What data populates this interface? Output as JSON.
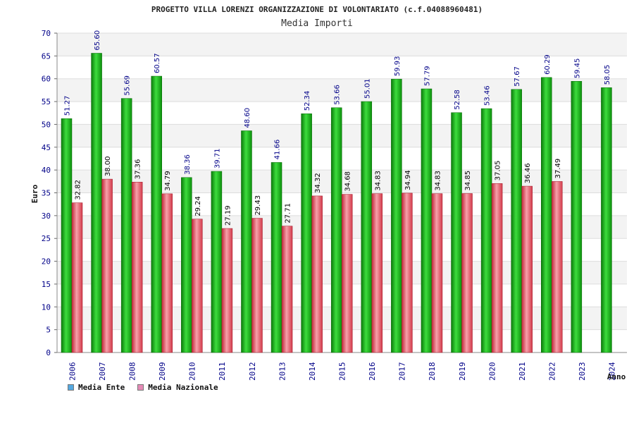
{
  "colors": {
    "ente": "#1fb01f",
    "nazionale": "#e14a5a",
    "legend_ente": "#55a8e0",
    "legend_nazionale": "#e58ab6",
    "axis_label": "#000088",
    "value_ente": "#000088",
    "value_nazionale": "#000000"
  },
  "chart_data": {
    "type": "bar",
    "title": "PROGETTO VILLA LORENZI ORGANIZZAZIONE DI VOLONTARIATO (c.f.04088960481)",
    "subtitle": "Media Importi",
    "xlabel": "Anno",
    "ylabel": "Euro",
    "ylim": [
      0,
      70
    ],
    "yticks": [
      0,
      5,
      10,
      15,
      20,
      25,
      30,
      35,
      40,
      45,
      50,
      55,
      60,
      65,
      70
    ],
    "categories": [
      "2006",
      "2007",
      "2008",
      "2009",
      "2010",
      "2011",
      "2012",
      "2013",
      "2014",
      "2015",
      "2016",
      "2017",
      "2018",
      "2019",
      "2020",
      "2021",
      "2022",
      "2023",
      "2024"
    ],
    "series": [
      {
        "name": "Media Ente",
        "values": [
          51.27,
          65.6,
          55.69,
          60.57,
          38.36,
          39.71,
          48.6,
          41.66,
          52.34,
          53.66,
          55.01,
          59.93,
          57.79,
          52.58,
          53.46,
          57.67,
          60.29,
          59.45,
          58.05
        ],
        "labels": [
          "51.27",
          "65.60",
          "55.69",
          "60.57",
          "38.36",
          "39.71",
          "48.60",
          "41.66",
          "52.34",
          "53.66",
          "55.01",
          "59.93",
          "57.79",
          "52.58",
          "53.46",
          "57.67",
          "60.29",
          "59.45",
          "58.05"
        ]
      },
      {
        "name": "Media Nazionale",
        "values": [
          32.82,
          38.0,
          37.36,
          34.79,
          29.24,
          27.19,
          29.43,
          27.71,
          34.32,
          34.68,
          34.83,
          34.94,
          34.83,
          34.85,
          37.05,
          36.46,
          37.49,
          null,
          null
        ],
        "labels": [
          "32.82",
          "38.00",
          "37.36",
          "34.79",
          "29.24",
          "27.19",
          "29.43",
          "27.71",
          "34.32",
          "34.68",
          "34.83",
          "34.94",
          "34.83",
          "34.85",
          "37.05",
          "36.46",
          "37.49",
          null,
          null
        ]
      }
    ],
    "legend": [
      "Media Ente",
      "Media Nazionale"
    ],
    "legend_position": "bottom-left",
    "grid": true
  }
}
